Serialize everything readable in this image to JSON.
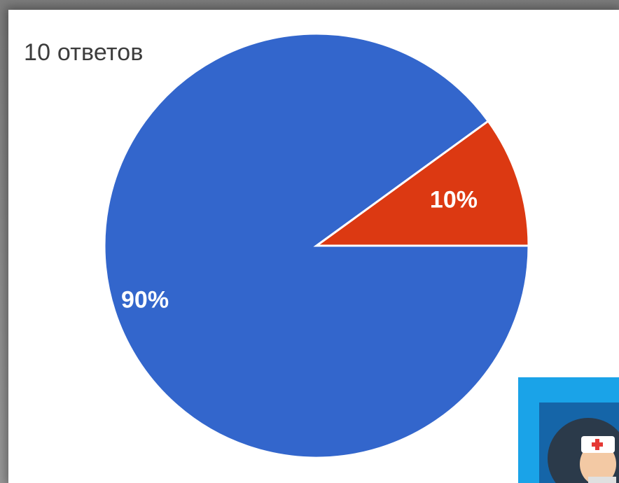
{
  "responses_label": "10 ответов",
  "chart_data": {
    "type": "pie",
    "total_responses": 10,
    "slices": [
      {
        "value": 10,
        "label": "10%",
        "color": "#dc3912"
      },
      {
        "value": 90,
        "label": "90%",
        "color": "#3366cc"
      }
    ]
  },
  "illustration": {
    "icon": "doctor-icon",
    "background_color": "#1aa3e8"
  }
}
